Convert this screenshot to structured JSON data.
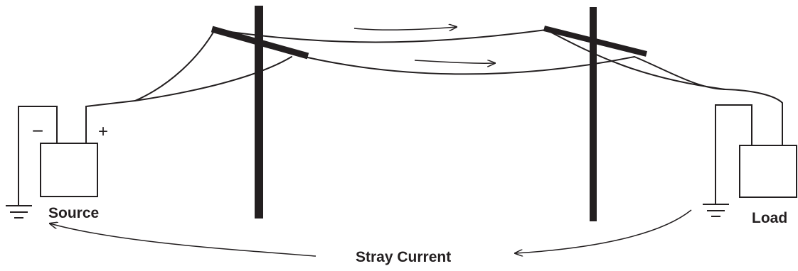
{
  "diagram": {
    "source_label": "Source",
    "load_label": "Load",
    "stray_current_label": "Stray Current",
    "minus_sign": "−",
    "plus_sign": "+",
    "colors": {
      "ink": "#231f20",
      "background": "#ffffff"
    },
    "icons": [
      "ground-icon",
      "arrow-icon"
    ]
  }
}
